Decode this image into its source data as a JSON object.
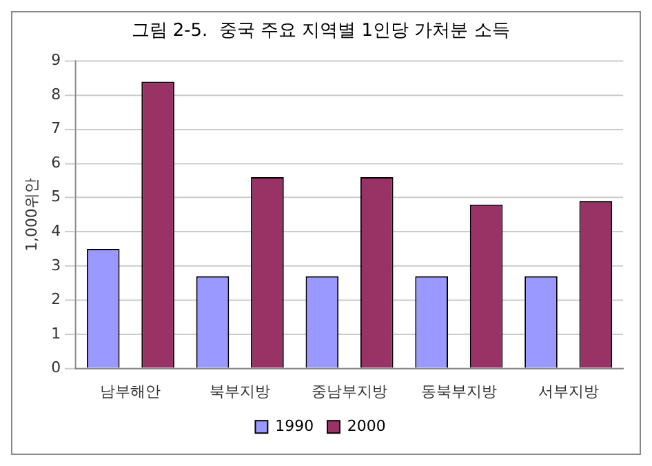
{
  "chart_data": {
    "type": "bar",
    "title": "그림 2-5.  중국 주요 지역별 1인당 가처분 소득",
    "ylabel": "1,000위안",
    "categories": [
      "남부해안",
      "북부지방",
      "중남부지방",
      "동북부지방",
      "서부지방"
    ],
    "series": [
      {
        "name": "1990",
        "color": "#9999ff",
        "values": [
          3.5,
          2.7,
          2.7,
          2.7,
          2.7
        ]
      },
      {
        "name": "2000",
        "color": "#993366",
        "values": [
          8.4,
          5.6,
          5.6,
          4.8,
          4.9
        ]
      }
    ],
    "ylim": [
      0,
      9
    ],
    "yticks": [
      0,
      1,
      2,
      3,
      4,
      5,
      6,
      7,
      8,
      9
    ],
    "grid": "y",
    "legend": "bottom"
  }
}
